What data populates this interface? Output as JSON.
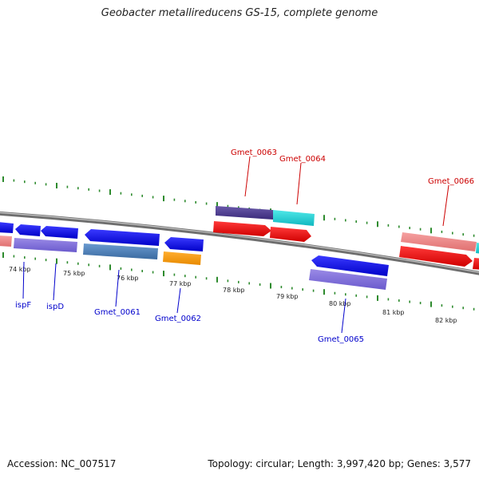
{
  "title": "Geobacter metallireducens GS-15, complete genome",
  "accession_label": "Accession: NC_007517",
  "summary_label": "Topology: circular; Length: 3,997,420 bp; Genes: 3,577",
  "colors": {
    "backbone": "#8c8c8c",
    "tick": "#2e8b2e",
    "forward_label": "#cc0000",
    "reverse_label": "#0000cc"
  },
  "kbp_ticks": [
    "74 kbp",
    "75 kbp",
    "76 kbp",
    "77 kbp",
    "78 kbp",
    "79 kbp",
    "80 kbp",
    "81 kbp",
    "82 kbp"
  ],
  "gene_labels": {
    "forward": [
      "Gmet_0063",
      "Gmet_0064",
      "Gmet_0066"
    ],
    "reverse": [
      "ispF",
      "ispD",
      "Gmet_0061",
      "Gmet_0062",
      "Gmet_0065"
    ]
  }
}
